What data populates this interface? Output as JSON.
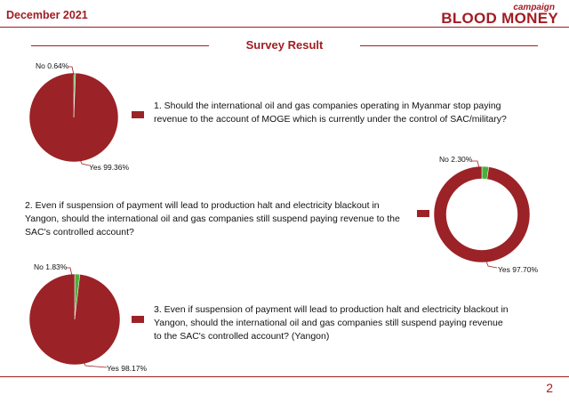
{
  "header": {
    "date": "December 2021",
    "brand_small": "campaign",
    "brand_big": "BLOOD MONEY"
  },
  "title": "Survey Result",
  "questions": [
    {
      "text": "1. Should the international oil and gas companies operating in Myanmar stop paying revenue to the account of MOGE which is currently under the control of SAC/military?"
    },
    {
      "text": "2. Even if suspension of payment will lead to production halt and electricity blackout in Yangon, should the international oil and gas companies still suspend paying revenue to the SAC's controlled account?"
    },
    {
      "text": "3. Even if suspension of payment will lead to production halt and electricity blackout in Yangon, should the international oil and gas companies still suspend paying revenue to the SAC's controlled account? (Yangon)"
    }
  ],
  "page_number": "2",
  "colors": {
    "yes": "#9b2226",
    "no": "#4caf3a",
    "accent": "#a11d22"
  },
  "chart_data": [
    {
      "type": "pie",
      "categories": [
        "No",
        "Yes"
      ],
      "values": [
        0.64,
        99.36
      ],
      "labels": [
        "No 0.64%",
        "Yes 99.36%"
      ]
    },
    {
      "type": "pie",
      "donut": true,
      "categories": [
        "No",
        "Yes"
      ],
      "values": [
        2.3,
        97.7
      ],
      "labels": [
        "No 2.30%",
        "Yes 97.70%"
      ]
    },
    {
      "type": "pie",
      "categories": [
        "No",
        "Yes"
      ],
      "values": [
        1.83,
        98.17
      ],
      "labels": [
        "No 1.83%",
        "Yes 98.17%"
      ]
    }
  ]
}
